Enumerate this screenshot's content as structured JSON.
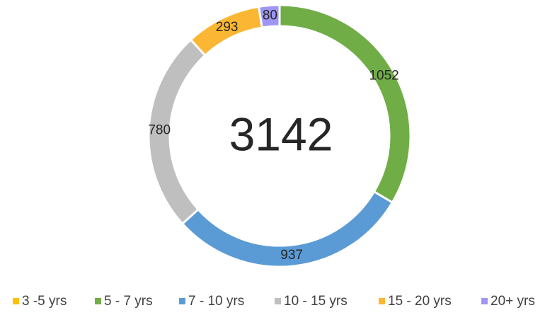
{
  "chart_data": {
    "type": "donut",
    "categories": [
      "3 -5 yrs",
      "5 - 7 yrs",
      "7 - 10 yrs",
      "10 - 15 yrs",
      "15 - 20 yrs",
      "20+ yrs"
    ],
    "values": [
      0,
      1052,
      937,
      780,
      293,
      80
    ],
    "colors": [
      "#ffc000",
      "#70ad47",
      "#5b9bd5",
      "#bfbfbf",
      "#fbb733",
      "#9d96f5"
    ],
    "total": 3142,
    "legend": "bottom"
  }
}
